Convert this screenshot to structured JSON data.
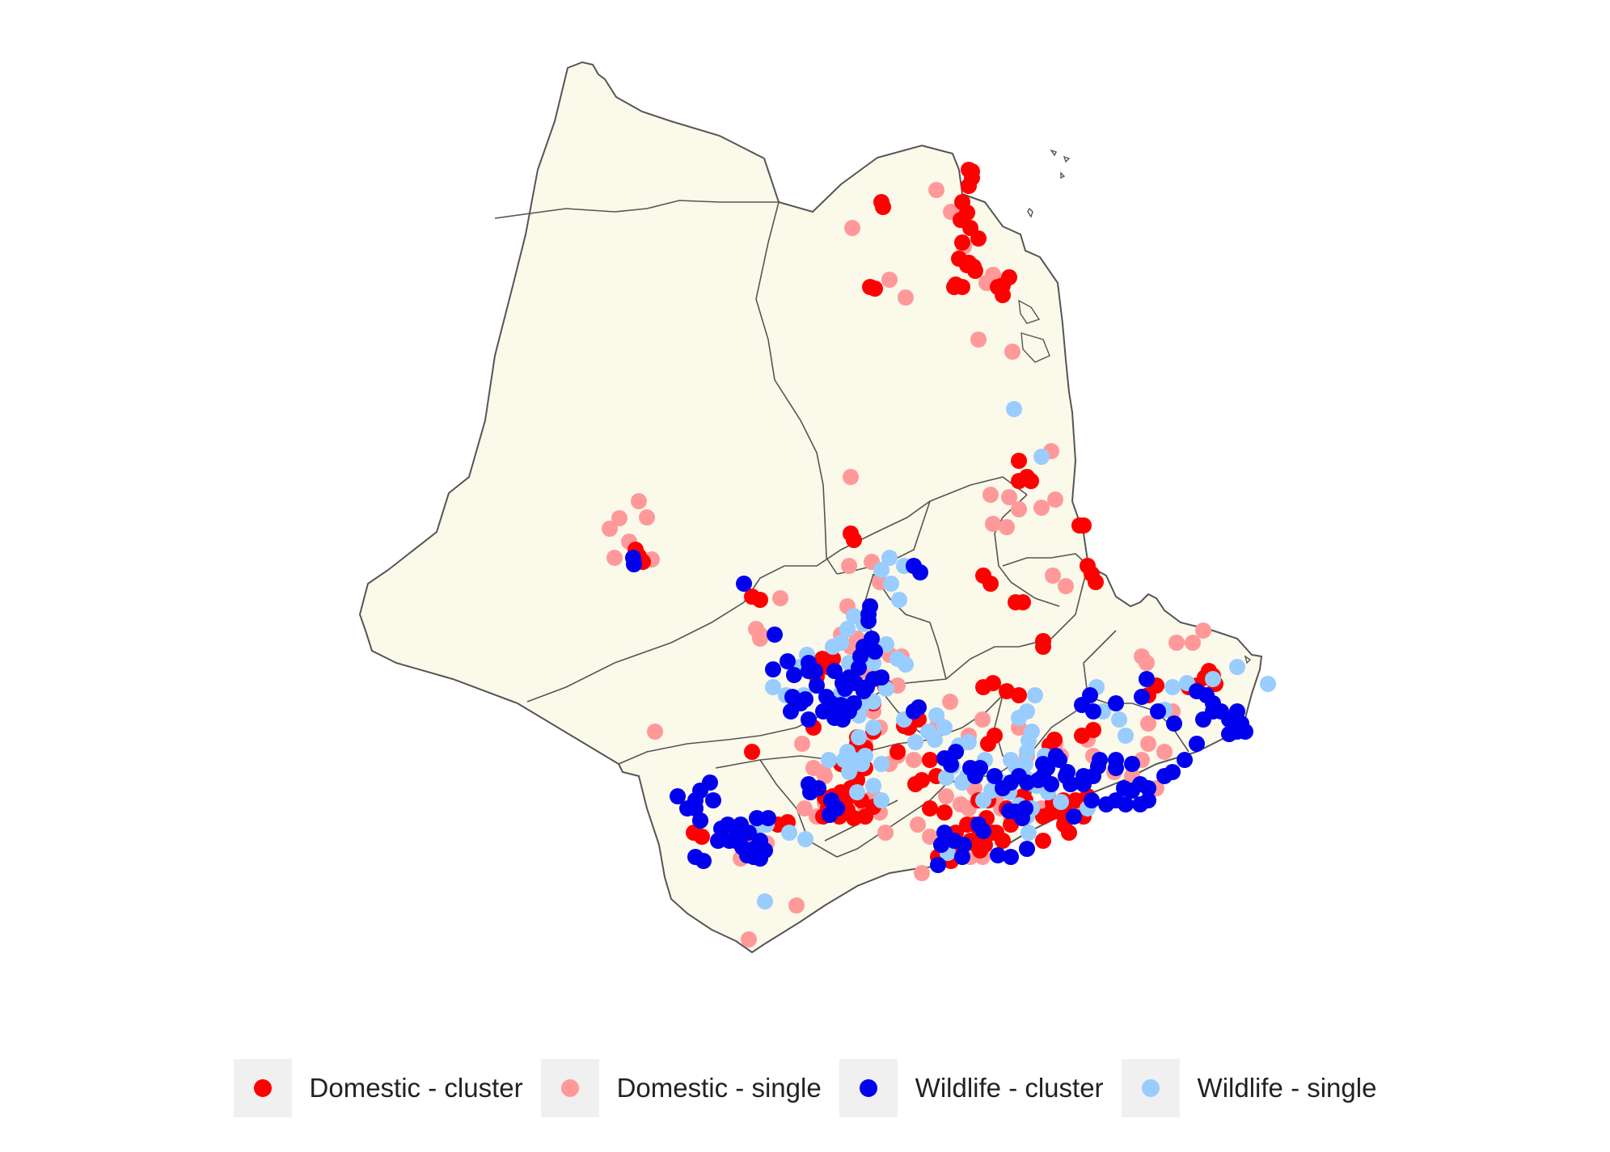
{
  "map": {
    "land_color": "#fbf9ea",
    "border_color": "#555555"
  },
  "legend": {
    "items": [
      {
        "key": "domestic_cluster",
        "label": "Domestic - cluster",
        "color": "#ff0000"
      },
      {
        "key": "domestic_single",
        "label": "Domestic - single",
        "color": "#ff9999"
      },
      {
        "key": "wildlife_cluster",
        "label": "Wildlife - cluster",
        "color": "#0000ee"
      },
      {
        "key": "wildlife_single",
        "label": "Wildlife - single",
        "color": "#99ccff"
      }
    ]
  }
}
